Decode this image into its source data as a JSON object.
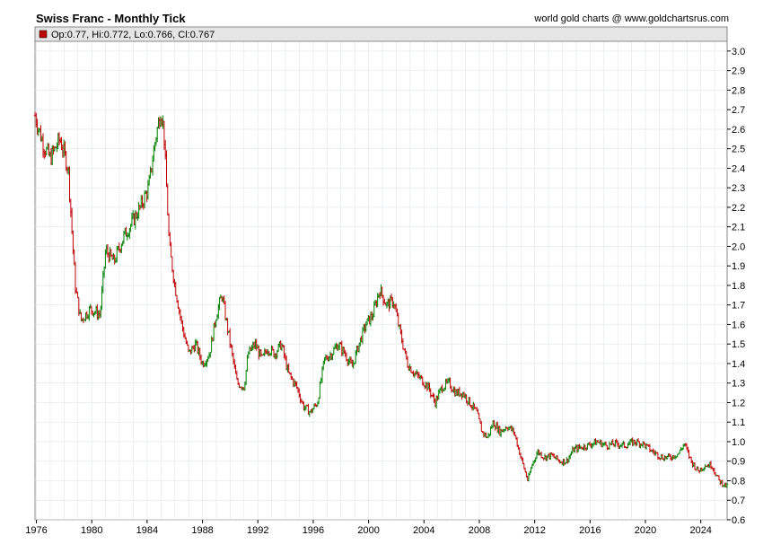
{
  "header": {
    "title": "Swiss Franc - Monthly Tick",
    "credit": "world gold charts @ www.goldchartsrus.com"
  },
  "info": {
    "label": "Op:0.77, Hi:0.772, Lo:0.766, Cl:0.767",
    "swatch_color": "#c00000"
  },
  "colors": {
    "up": "#008000",
    "down": "#c00000",
    "grid": "#dfe3ea",
    "info_bg": "#e6e6e6"
  },
  "chart_data": {
    "type": "line",
    "title": "Swiss Franc - Monthly Tick",
    "series_style": "monthly OHLC tick bars (green = up month, red = down month)",
    "x_ticks": [
      "1976",
      "1980",
      "1984",
      "1988",
      "1992",
      "1996",
      "2000",
      "2004",
      "2008",
      "2012",
      "2016",
      "2020",
      "2024"
    ],
    "y_ticks": [
      "3.0",
      "2.9",
      "2.8",
      "2.7",
      "2.6",
      "2.5",
      "2.4",
      "2.3",
      "2.2",
      "2.1",
      "2.0",
      "1.9",
      "1.8",
      "1.7",
      "1.6",
      "1.5",
      "1.4",
      "1.3",
      "1.2",
      "1.1",
      "1.0",
      "0.9",
      "0.8",
      "0.7",
      "0.6"
    ],
    "xlim": [
      1975.9,
      2025.9
    ],
    "ylim": [
      0.6,
      3.05
    ],
    "y_axis_side": "right",
    "grid": true,
    "x": [
      1975.9,
      1976.5,
      1977.0,
      1977.7,
      1978.3,
      1978.8,
      1979.2,
      1979.9,
      1980.6,
      1981.0,
      1981.6,
      1982.3,
      1982.9,
      1983.5,
      1984.1,
      1984.6,
      1985.0,
      1985.2,
      1985.6,
      1986.0,
      1986.5,
      1987.0,
      1987.5,
      1988.0,
      1988.5,
      1989.0,
      1989.4,
      1990.0,
      1990.5,
      1991.0,
      1991.3,
      1991.8,
      1992.3,
      1992.7,
      1993.2,
      1993.7,
      1994.2,
      1994.8,
      1995.3,
      1995.8,
      1996.3,
      1996.8,
      1997.3,
      1997.8,
      1998.3,
      1998.8,
      1999.3,
      1999.8,
      2000.3,
      2000.8,
      2001.3,
      2001.8,
      2002.3,
      2002.8,
      2003.3,
      2003.8,
      2004.3,
      2004.8,
      2005.3,
      2005.8,
      2006.3,
      2006.8,
      2007.3,
      2007.8,
      2008.2,
      2008.6,
      2009.0,
      2009.5,
      2010.0,
      2010.5,
      2011.0,
      2011.5,
      2011.8,
      2012.2,
      2012.7,
      2013.2,
      2013.8,
      2014.3,
      2014.8,
      2015.3,
      2015.8,
      2016.5,
      2017.2,
      2017.8,
      2018.5,
      2019.2,
      2019.8,
      2020.5,
      2021.2,
      2021.8,
      2022.4,
      2022.8,
      2023.3,
      2023.8,
      2024.3,
      2024.8,
      2025.3,
      2025.9
    ],
    "y": [
      2.67,
      2.52,
      2.45,
      2.55,
      2.4,
      1.8,
      1.62,
      1.68,
      1.65,
      1.98,
      1.92,
      2.05,
      2.12,
      2.2,
      2.3,
      2.55,
      2.7,
      2.6,
      2.0,
      1.8,
      1.6,
      1.45,
      1.5,
      1.4,
      1.45,
      1.65,
      1.75,
      1.5,
      1.3,
      1.28,
      1.45,
      1.5,
      1.42,
      1.48,
      1.45,
      1.5,
      1.35,
      1.28,
      1.18,
      1.15,
      1.2,
      1.42,
      1.45,
      1.5,
      1.45,
      1.38,
      1.5,
      1.6,
      1.65,
      1.78,
      1.7,
      1.72,
      1.55,
      1.4,
      1.35,
      1.32,
      1.28,
      1.2,
      1.28,
      1.3,
      1.25,
      1.25,
      1.2,
      1.15,
      1.05,
      1.02,
      1.1,
      1.05,
      1.08,
      1.05,
      0.92,
      0.8,
      0.88,
      0.95,
      0.92,
      0.93,
      0.9,
      0.9,
      0.96,
      0.97,
      0.98,
      1.0,
      0.98,
      0.99,
      0.98,
      1.0,
      0.99,
      0.95,
      0.92,
      0.92,
      0.94,
      0.99,
      0.9,
      0.85,
      0.88,
      0.88,
      0.8,
      0.77
    ]
  }
}
